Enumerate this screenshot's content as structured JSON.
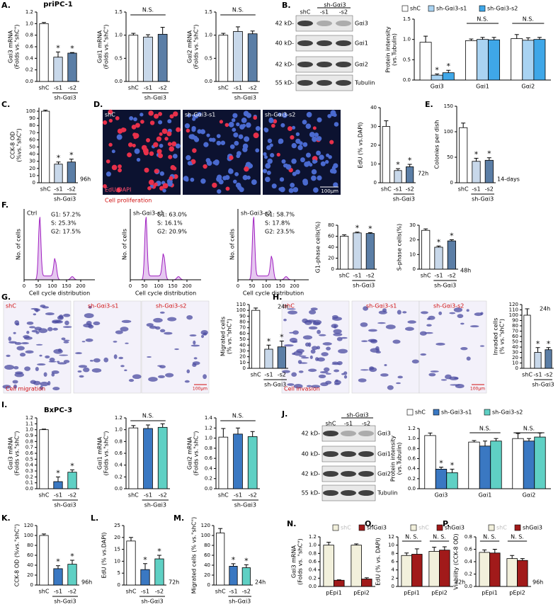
{
  "figure": {
    "letters": [
      "A.",
      "B.",
      "C.",
      "D.",
      "E.",
      "F.",
      "G.",
      "H.",
      "I.",
      "J.",
      "K.",
      "L.",
      "M.",
      "N.",
      "O.",
      "P."
    ],
    "blots": [
      {
        "group": "sh-Gαi3",
        "lanes": [
          "shC",
          "-s1",
          "-s2"
        ],
        "sizes": [
          "42 kD-",
          "40 kD-",
          "42 kD-",
          "55 kD-"
        ],
        "proteins": [
          "Gαi3",
          "Gαi1",
          "Gαi2",
          "Tubulin"
        ]
      },
      {
        "group": "sh-Gαi3",
        "lanes": [
          "shC",
          "-s1",
          "-s2"
        ],
        "sizes": [
          "42 kD-",
          "40 kD-",
          "42 kD-",
          "55 kD-"
        ],
        "proteins": [
          "Gαi3",
          "Gαi1",
          "Gαi2",
          "Tubulin"
        ]
      }
    ],
    "proliferation": {
      "panels": [
        "shC",
        "sh-Gαi3-s1",
        "sh-Gαi3-s2"
      ],
      "stain": "EdU/DAPI",
      "caption": "Cell proliferation",
      "scale": "100μm"
    },
    "cycle": {
      "panels": [
        {
          "name": "Ctrl",
          "lines": [
            "G1: 57.2%",
            "S: 25.3%",
            "G2: 17.5%"
          ]
        },
        {
          "name": "sh-Gαi3-s1",
          "lines": [
            "G1: 63.0%",
            "S: 16.1%",
            "G2: 20.9%"
          ]
        },
        {
          "name": "sh-Gαi3-s2",
          "lines": [
            "G1: 58.7%",
            "S: 17.8%",
            "G2: 23.5%"
          ]
        }
      ],
      "y_label": "No. of cells",
      "x_label": "Cell cycle distribution",
      "xlim": [
        0,
        250
      ],
      "xticks": [
        0,
        50,
        100,
        150,
        200
      ]
    },
    "migration": {
      "panels": [
        "shC",
        "sh-Gαi3-s1",
        "sh-Gαi3-s2"
      ],
      "caption": "Cell migration",
      "scale": "100μm"
    },
    "invasion": {
      "panels": [
        "shC",
        "sh-Gαi3-s1",
        "sh-Gαi3-s2"
      ],
      "caption": "Cell invasion",
      "scale": "100μm"
    }
  },
  "chart_data": [
    {
      "type": "bar",
      "title": "priPC-1",
      "y_label": [
        "Gαi3 mRNA",
        "(Folds vs.\"shC\")"
      ],
      "categories": [
        "shC",
        "-s1",
        "-s2"
      ],
      "group_label": "sh-Gαi3",
      "values": [
        1,
        0.42,
        0.49
      ],
      "errors": [
        0.02,
        0.09,
        0.01
      ],
      "stars": [
        null,
        "*",
        "*"
      ],
      "colors": [
        "#ffffff",
        "#c8d8ea",
        "#5b7ea6"
      ],
      "ylim": [
        0,
        1.2
      ],
      "yticks": [
        {
          "value": 0,
          "label": "0.0"
        },
        0.2,
        0.4,
        0.6,
        0.8,
        {
          "value": 1,
          "label": "1.0"
        },
        1.2
      ]
    },
    {
      "type": "bar",
      "y_label": [
        "Gαi1 mRNA",
        "(Folds vs.\"shC\")"
      ],
      "categories": [
        "shC",
        "-s1",
        "-s2"
      ],
      "group_label": "sh-Gαi3",
      "values": [
        1,
        0.96,
        1.02
      ],
      "errors": [
        0.04,
        0.05,
        0.15
      ],
      "ns_label": "N.S.",
      "colors": [
        "#ffffff",
        "#c8d8ea",
        "#5b7ea6"
      ],
      "ylim": [
        0,
        1.5
      ],
      "yticks": [
        {
          "value": 0,
          "label": "0.0"
        },
        0.5,
        {
          "value": 1,
          "label": "1.0"
        },
        1.5
      ]
    },
    {
      "type": "bar",
      "y_label": [
        "Gαi2 mRNA",
        "(Folds vs.\"shC\")"
      ],
      "categories": [
        "shC",
        "-s1",
        "-s2"
      ],
      "group_label": "sh-Gαi3",
      "values": [
        1,
        1.08,
        1.03
      ],
      "errors": [
        0.04,
        0.1,
        0.06
      ],
      "ns_label": "N.S.",
      "colors": [
        "#ffffff",
        "#c8d8ea",
        "#5b7ea6"
      ],
      "ylim": [
        0,
        1.5
      ],
      "yticks": [
        {
          "value": 0,
          "label": "0.0"
        },
        0.5,
        {
          "value": 1,
          "label": "1.0"
        },
        1.5
      ]
    },
    {
      "type": "grouped_bar",
      "y_label": [
        "Protein intensity",
        "(vs.Tubulin)"
      ],
      "categories": [
        "Gαi3",
        "Gαi1",
        "Gαi2"
      ],
      "series": [
        {
          "name": "shC",
          "color": "#ffffff",
          "values": [
            0.93,
            0.97,
            1.02
          ],
          "errors": [
            0.15,
            0.04,
            0.1
          ]
        },
        {
          "name": "sh-Gαi3-s1",
          "color": "#a9d3f2",
          "values": [
            0.12,
            1,
            0.98
          ],
          "errors": [
            0.03,
            0.05,
            0.06
          ],
          "stars": [
            "*",
            null,
            null
          ]
        },
        {
          "name": "sh-Gαi3-s2",
          "color": "#3fa7e8",
          "values": [
            0.18,
            0.99,
            1
          ],
          "errors": [
            0.06,
            0.06,
            0.05
          ],
          "stars": [
            "*",
            null,
            null
          ]
        }
      ],
      "ns_labels": [
        null,
        "N.S.",
        "N.S."
      ],
      "ylim": [
        0,
        1.5
      ],
      "yticks": [
        {
          "value": 0,
          "label": "0.0"
        },
        0.5,
        {
          "value": 1,
          "label": "1.0"
        },
        1.5
      ]
    },
    {
      "type": "bar",
      "y_label": [
        "CCK-8 OD",
        "(%vs.\"shC\")"
      ],
      "categories": [
        "shC",
        "-s1",
        "-s2"
      ],
      "group_label": "sh-Gαi3",
      "values": [
        100,
        26,
        29
      ],
      "errors": [
        1.5,
        3,
        4
      ],
      "stars": [
        null,
        "*",
        "*"
      ],
      "time_label": "96h",
      "colors": [
        "#ffffff",
        "#c8d8ea",
        "#5b7ea6"
      ],
      "ylim": [
        0,
        105
      ],
      "yticks": [
        0,
        10,
        20,
        30,
        40,
        50,
        60,
        70,
        80,
        90,
        100
      ]
    },
    {
      "type": "bar",
      "y_label": [
        "EdU (% vs.DAPI)"
      ],
      "categories": [
        "shC",
        "-s1",
        "-s2"
      ],
      "group_label": "sh-Gαi3",
      "values": [
        30,
        6.5,
        8.5
      ],
      "errors": [
        3,
        1,
        1.3
      ],
      "stars": [
        null,
        "*",
        "*"
      ],
      "time_label": "72h",
      "colors": [
        "#ffffff",
        "#c8d8ea",
        "#5b7ea6"
      ],
      "ylim": [
        0,
        40
      ],
      "yticks": [
        0,
        10,
        20,
        30,
        40
      ]
    },
    {
      "type": "bar",
      "y_label": [
        "Colonies per dish"
      ],
      "categories": [
        "shC",
        "-s1",
        "-s2"
      ],
      "group_label": "sh-Gαi3",
      "values": [
        108,
        42,
        44
      ],
      "errors": [
        9,
        6,
        5
      ],
      "stars": [
        null,
        "*",
        "*"
      ],
      "time_label": "14-days",
      "colors": [
        "#ffffff",
        "#c8d8ea",
        "#5b7ea6"
      ],
      "ylim": [
        0,
        150
      ],
      "yticks": [
        0,
        50,
        100,
        150
      ]
    },
    {
      "type": "bar",
      "y_label": [
        "G1-phase cells(%)"
      ],
      "categories": [
        "shC",
        "-s1",
        "-s2"
      ],
      "group_label": "sh-Gαi3",
      "values": [
        60,
        66,
        65
      ],
      "errors": [
        2.5,
        1.5,
        1.5
      ],
      "stars": [
        null,
        "*",
        "*"
      ],
      "colors": [
        "#ffffff",
        "#c8d8ea",
        "#5b7ea6"
      ],
      "ylim": [
        0,
        80
      ],
      "yticks": [
        0,
        20,
        40,
        60,
        80
      ]
    },
    {
      "type": "bar",
      "y_label": [
        "S-phase cells(%)"
      ],
      "categories": [
        "shC",
        "-s1",
        "-s2"
      ],
      "group_label": "sh-Gαi3",
      "values": [
        26.5,
        15,
        19.3
      ],
      "errors": [
        1,
        0.8,
        0.8
      ],
      "stars": [
        null,
        "*",
        "*"
      ],
      "time_label": "48h",
      "colors": [
        "#ffffff",
        "#c8d8ea",
        "#5b7ea6"
      ],
      "ylim": [
        0,
        30
      ],
      "yticks": [
        0,
        10,
        20,
        30
      ]
    },
    {
      "type": "bar",
      "y_label": [
        "Migrated cells",
        "(% vs.\"shC\")"
      ],
      "categories": [
        "shC",
        "-s1",
        "-s2"
      ],
      "group_label": "sh-Gαi3",
      "values": [
        100,
        33,
        37
      ],
      "errors": [
        4,
        7,
        10
      ],
      "stars": [
        null,
        "*",
        "*"
      ],
      "time_label": "24h",
      "colors": [
        "#ffffff",
        "#c8d8ea",
        "#5b7ea6"
      ],
      "ylim": [
        0,
        110
      ],
      "yticks": [
        0,
        10,
        20,
        30,
        40,
        50,
        60,
        70,
        80,
        90,
        100,
        110
      ]
    },
    {
      "type": "bar",
      "y_label": [
        "Invaded cells",
        "(% vs.\"shC\")"
      ],
      "categories": [
        "shC",
        "-s1",
        "-s2"
      ],
      "group_label": "sh-Gαi3",
      "values": [
        100,
        30,
        35
      ],
      "errors": [
        12,
        9,
        4
      ],
      "stars": [
        null,
        "*",
        "*"
      ],
      "time_label": "24h",
      "colors": [
        "#ffffff",
        "#c8d8ea",
        "#5b7ea6"
      ],
      "ylim": [
        0,
        120
      ],
      "yticks": [
        0,
        10,
        20,
        30,
        40,
        50,
        60,
        70,
        80,
        90,
        100,
        110,
        120
      ]
    },
    {
      "type": "bar",
      "title": "BxPC-3",
      "y_label": [
        "Gαi3 mRNA",
        "(Folds vs.\"shC\")"
      ],
      "categories": [
        "shC",
        "-s1",
        "-s2"
      ],
      "group_label": "sh-Gαi3",
      "values": [
        1,
        0.12,
        0.28
      ],
      "errors": [
        0.01,
        0.08,
        0.04
      ],
      "stars": [
        null,
        "*",
        "*"
      ],
      "colors": [
        "#ffffff",
        "#3a78c2",
        "#5fd0c4"
      ],
      "ylim": [
        0,
        1.2
      ],
      "yticks": [
        {
          "value": 0,
          "label": "0.0"
        },
        0.1,
        0.2,
        0.3,
        0.4,
        0.5,
        0.6,
        0.7,
        0.8,
        0.9,
        {
          "value": 1,
          "label": "1.0"
        },
        1.1,
        1.2
      ]
    },
    {
      "type": "bar",
      "y_label": [
        "Gαi1 mRNA",
        "(Folds vs.\"shC\")"
      ],
      "categories": [
        "shC",
        "-s1",
        "-s2"
      ],
      "group_label": "sh-Gαi3",
      "values": [
        1.03,
        1.02,
        1.04
      ],
      "errors": [
        0.04,
        0.06,
        0.06
      ],
      "ns_label": "N.S.",
      "colors": [
        "#ffffff",
        "#3a78c2",
        "#5fd0c4"
      ],
      "ylim": [
        0,
        1.2
      ],
      "yticks": [
        {
          "value": 0,
          "label": "0.0"
        },
        0.2,
        0.4,
        0.6,
        0.8,
        {
          "value": 1,
          "label": "1.0"
        },
        1.2
      ]
    },
    {
      "type": "bar",
      "y_label": [
        "Gαi2 mRNA",
        "(Folds vs.\"shC\")"
      ],
      "categories": [
        "shC",
        "-s1",
        "-s2"
      ],
      "group_label": "sh-Gαi3",
      "values": [
        1.02,
        1.08,
        1.03
      ],
      "errors": [
        0.17,
        0.12,
        0.1
      ],
      "ns_label": "N.S.",
      "colors": [
        "#ffffff",
        "#3a78c2",
        "#5fd0c4"
      ],
      "ylim": [
        0,
        1.4
      ],
      "yticks": [
        {
          "value": 0,
          "label": "0.0"
        },
        0.2,
        0.4,
        0.6,
        0.8,
        {
          "value": 1,
          "label": "1.0"
        },
        1.2,
        1.4
      ]
    },
    {
      "type": "grouped_bar",
      "y_label": [
        "Protein intensity",
        "(vs.Tubulin)"
      ],
      "categories": [
        "Gαi3",
        "Gαi1",
        "Gαi2"
      ],
      "series": [
        {
          "name": "shC",
          "color": "#ffffff",
          "values": [
            1.06,
            0.93,
            1
          ],
          "errors": [
            0.05,
            0.03,
            0.1
          ]
        },
        {
          "name": "sh-Gαi3-s1",
          "color": "#3a78c2",
          "values": [
            0.39,
            0.85,
            0.95
          ],
          "errors": [
            0.04,
            0.1,
            0.05
          ],
          "stars": [
            "*",
            null,
            null
          ]
        },
        {
          "name": "sh-Gαi3-s2",
          "color": "#5fd0c4",
          "values": [
            0.32,
            0.95,
            1.03
          ],
          "errors": [
            0.07,
            0.05,
            0.08
          ],
          "stars": [
            "*",
            null,
            null
          ]
        }
      ],
      "ns_labels": [
        null,
        "N.S.",
        "N.S."
      ],
      "ylim": [
        0,
        1.2
      ],
      "yticks": [
        {
          "value": 0,
          "label": "0.0"
        },
        0.2,
        0.4,
        0.6,
        0.8,
        {
          "value": 1,
          "label": "1.0"
        },
        1.2
      ]
    },
    {
      "type": "bar",
      "y_label": [
        "CCK-8 OD (%vs.\"shC\")"
      ],
      "categories": [
        "shC",
        "-s1",
        "-s2"
      ],
      "group_label": "sh-Gαi3",
      "values": [
        100,
        33,
        42
      ],
      "errors": [
        3,
        6,
        8
      ],
      "stars": [
        null,
        "*",
        "*"
      ],
      "time_label": "96h",
      "colors": [
        "#ffffff",
        "#3a78c2",
        "#5fd0c4"
      ],
      "ylim": [
        0,
        120
      ],
      "yticks": [
        0,
        20,
        40,
        60,
        80,
        100,
        120
      ]
    },
    {
      "type": "bar",
      "y_label": [
        "EdU (% vs.DAPI)"
      ],
      "categories": [
        "shC",
        "-s1",
        "-s2"
      ],
      "group_label": "sh-Gαi3",
      "values": [
        18.5,
        6.5,
        11
      ],
      "errors": [
        1.5,
        2.5,
        1.5
      ],
      "stars": [
        null,
        "*",
        "*"
      ],
      "time_label": "72h",
      "colors": [
        "#ffffff",
        "#3a78c2",
        "#5fd0c4"
      ],
      "ylim": [
        0,
        25
      ],
      "yticks": [
        0,
        5,
        10,
        15,
        20,
        25
      ]
    },
    {
      "type": "bar",
      "y_label": [
        "Migrated cells (% vs.\"shC\")"
      ],
      "categories": [
        "shC",
        "-s1",
        "-s2"
      ],
      "group_label": "sh-Gαi3",
      "values": [
        105,
        38,
        35
      ],
      "errors": [
        9,
        5,
        6
      ],
      "stars": [
        null,
        "*",
        "*"
      ],
      "time_label": "24h",
      "colors": [
        "#ffffff",
        "#3a78c2",
        "#5fd0c4"
      ],
      "ylim": [
        0,
        120
      ],
      "yticks": [
        0,
        20,
        40,
        60,
        80,
        100,
        120
      ]
    },
    {
      "type": "grouped_bar",
      "y_label": [
        "Gαi3 mRNA",
        "(Folds vs. \"shC\")"
      ],
      "categories": [
        "pEpi1",
        "pEpi2"
      ],
      "series": [
        {
          "name": "shC",
          "color": "#f2f0dc",
          "values": [
            1,
            1
          ],
          "errors": [
            0.07,
            0.03
          ]
        },
        {
          "name": "shGαi3",
          "color": "#a11a1a",
          "values": [
            0.15,
            0.18
          ],
          "errors": [
            0.01,
            0.03
          ]
        }
      ],
      "ylim": [
        0,
        1.2
      ],
      "yticks": [
        {
          "value": 0,
          "label": "0.0"
        },
        0.2,
        0.4,
        0.6,
        0.8,
        {
          "value": 1,
          "label": "1.0"
        },
        1.2
      ]
    },
    {
      "type": "grouped_bar",
      "y_label": [
        "EdU (% vs. DAPI)"
      ],
      "categories": [
        "pEpi1",
        "pEpi2"
      ],
      "series": [
        {
          "name": "shC",
          "color": "#f2f0dc",
          "values": [
            7.5,
            8.5
          ],
          "errors": [
            0.6,
            1
          ]
        },
        {
          "name": "shGαi3",
          "color": "#a11a1a",
          "values": [
            7.8,
            8.8
          ],
          "errors": [
            1.3,
            0.8
          ]
        }
      ],
      "ns_labels": [
        "N. S.",
        "N. S."
      ],
      "time_label": "72h",
      "ylim": [
        0,
        12
      ],
      "yticks": [
        0,
        2,
        4,
        6,
        8,
        10,
        12
      ]
    },
    {
      "type": "grouped_bar",
      "y_label": [
        "Viability (CCK-8 OD)"
      ],
      "categories": [
        "pEpi1",
        "pEpi2"
      ],
      "series": [
        {
          "name": "shC",
          "color": "#f2f0dc",
          "values": [
            0.55,
            0.45
          ],
          "errors": [
            0.04,
            0.05
          ]
        },
        {
          "name": "shGαi3",
          "color": "#a11a1a",
          "values": [
            0.54,
            0.42
          ],
          "errors": [
            0.06,
            0.03
          ]
        }
      ],
      "ns_labels": [
        "N. S.",
        "N. S."
      ],
      "time_label": "96h",
      "ylim": [
        0,
        0.8
      ],
      "yticks": [
        {
          "value": 0,
          "label": "0.0"
        },
        0.2,
        0.4,
        0.6,
        0.8
      ]
    }
  ]
}
